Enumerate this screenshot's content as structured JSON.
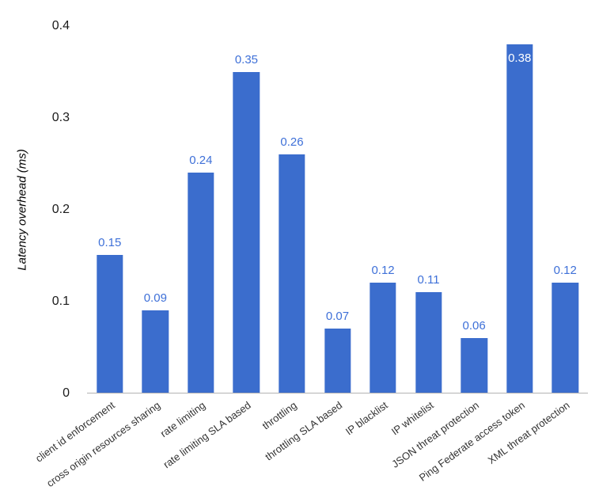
{
  "chart_data": {
    "type": "bar",
    "title": "",
    "xlabel": "",
    "ylabel": "Latency overhead (ms)",
    "ylim": [
      0,
      0.4
    ],
    "yticks": [
      0,
      0.1,
      0.2,
      0.3,
      0.4
    ],
    "ytick_labels": [
      "0",
      "0.1",
      "0.2",
      "0.3",
      "0.4"
    ],
    "grid": "off",
    "legend": "none",
    "bar_color": "#3b6dcd",
    "label_color": "#3e70d8",
    "inside_label_color": "#ffffff",
    "inside_label_indices": [
      9
    ],
    "categories": [
      "client id enforcement",
      "cross origin resources sharing",
      "rate limiting",
      "rate limiting SLA based",
      "throttling",
      "throttling SLA based",
      "IP blacklist",
      "IP whitelist",
      "JSON threat protection",
      "Ping Federate access token",
      "XML threat protection"
    ],
    "values": [
      0.15,
      0.09,
      0.24,
      0.35,
      0.26,
      0.07,
      0.12,
      0.11,
      0.06,
      0.38,
      0.12
    ],
    "value_labels": [
      "0.15",
      "0.09",
      "0.24",
      "0.35",
      "0.26",
      "0.07",
      "0.12",
      "0.11",
      "0.06",
      "0.38",
      "0.12"
    ]
  }
}
